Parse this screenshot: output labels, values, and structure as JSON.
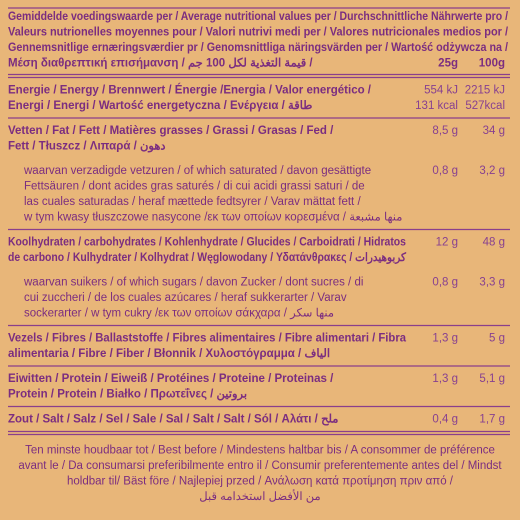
{
  "header": {
    "lines": [
      "Gemiddelde voedingswaarde per / Average nutritional values per / Durchschnittliche Nährwerte pro /",
      "Valeurs nutrionelles moyennes pour / Valori nutrivi medi per / Valores nutricionales medios por /",
      "Gennemsnitlige ernæringsværdier pr / Genomsnittliga näringsvärden per / Wartość odżywcza na /",
      "Μέση διαθρεπτική επισήμανση / قيمة التغذية لكل 100 جم /"
    ],
    "columns": [
      "25g",
      "100g"
    ]
  },
  "rows": [
    {
      "label": [
        "Energie / Energy / Brennwert / Énergie /Energia / Valor energético /",
        "Energi / Energi / Wartość energetyczna / Ενέργεια / طاقة"
      ],
      "per_25g": [
        "554 kJ",
        "131 kcal"
      ],
      "per_100g": [
        "2215 kJ",
        "527kcal"
      ]
    },
    {
      "label": [
        "Vetten / Fat / Fett / Matières grasses / Grassi / Grasas / Fed /",
        "Fett / Tłuszcz / Λιπαρά / دهون"
      ],
      "per_25g": [
        "8,5 g"
      ],
      "per_100g": [
        "34 g"
      ],
      "of_which": {
        "label": [
          "waarvan verzadigde vetzuren / of which saturated / davon gesättigte",
          "Fettsäuren / dont acides gras saturés / di cui acidi grassi saturi / de",
          "las cuales saturadas / heraf mættede fedtsyrer / Varav mättat fett /",
          "w tym kwasy tłuszczowe nasycone /εκ των οποίων κορεσμένα / منها مشبعة"
        ],
        "per_25g": [
          "0,8 g"
        ],
        "per_100g": [
          "3,2 g"
        ]
      }
    },
    {
      "label": [
        "Koolhydraten / carbohydrates / Kohlenhydrate / Glucides / Carboidrati / Hidratos",
        "de carbono / Kulhydrater / Kolhydrat / Węglowodany / Υδατάνθρακες / كربوهيدرات"
      ],
      "per_25g": [
        "12 g"
      ],
      "per_100g": [
        "48 g"
      ],
      "of_which": {
        "label": [
          "waarvan suikers / of which sugars / davon Zucker / dont sucres / di",
          "cui zuccheri / de los cuales azúcares / heraf sukkerarter / Varav",
          "sockerarter / w tym cukry /εκ των οποίων σάκχαρα / منها سكر"
        ],
        "per_25g": [
          "0,8 g"
        ],
        "per_100g": [
          "3,3 g"
        ]
      }
    },
    {
      "label": [
        "Vezels / Fibres / Ballaststoffe / Fibres alimentaires / Fibre alimentari / Fibra",
        "alimentaria / Fibre / Fiber / Błonnik / Χυλοστόγραμμα / الياف"
      ],
      "per_25g": [
        "1,3 g"
      ],
      "per_100g": [
        "5 g"
      ]
    },
    {
      "label": [
        "Eiwitten / Protein / Eiweiß / Protéines / Proteine / Proteinas /",
        "Protein / Protein / Białko / Πρωτεΐνες / بروتين"
      ],
      "per_25g": [
        "1,3 g"
      ],
      "per_100g": [
        "5,1 g"
      ]
    },
    {
      "label": [
        "Zout / Salt / Salz / Sel / Sale / Sal / Salt / Salt / Sól / Αλάτι / ملح"
      ],
      "per_25g": [
        "0,4 g"
      ],
      "per_100g": [
        "1,7 g"
      ]
    }
  ],
  "footer": {
    "lines": [
      "Ten minste houdbaar tot / Best before / Mindestens haltbar bis / A consommer de préférence",
      "avant le / Da consumarsi preferibilmente entro il / Consumir preferentemente antes del / Mindst",
      "holdbar til/ Bäst före / Najlepiej przed / Ανάλωση κατά προτίμηση πριν από /",
      "من الأفضل استخدامه قبل"
    ]
  }
}
